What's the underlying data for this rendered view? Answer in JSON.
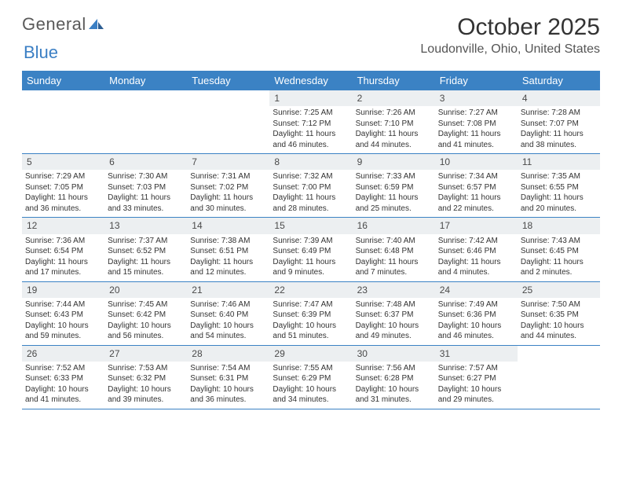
{
  "brand": {
    "part1": "General",
    "part2": "Blue"
  },
  "title": "October 2025",
  "location": "Loudonville, Ohio, United States",
  "colors": {
    "header_bg": "#3b82c4",
    "header_text": "#ffffff",
    "daynum_bg": "#eceff1",
    "border": "#3b82c4",
    "body_text": "#333333",
    "title_text": "#333333",
    "logo_gray": "#5a5a5a",
    "logo_blue": "#3b7fc4"
  },
  "day_names": [
    "Sunday",
    "Monday",
    "Tuesday",
    "Wednesday",
    "Thursday",
    "Friday",
    "Saturday"
  ],
  "weeks": [
    [
      {
        "day": "",
        "sunrise": "",
        "sunset": "",
        "daylight": ""
      },
      {
        "day": "",
        "sunrise": "",
        "sunset": "",
        "daylight": ""
      },
      {
        "day": "",
        "sunrise": "",
        "sunset": "",
        "daylight": ""
      },
      {
        "day": "1",
        "sunrise": "Sunrise: 7:25 AM",
        "sunset": "Sunset: 7:12 PM",
        "daylight": "Daylight: 11 hours and 46 minutes."
      },
      {
        "day": "2",
        "sunrise": "Sunrise: 7:26 AM",
        "sunset": "Sunset: 7:10 PM",
        "daylight": "Daylight: 11 hours and 44 minutes."
      },
      {
        "day": "3",
        "sunrise": "Sunrise: 7:27 AM",
        "sunset": "Sunset: 7:08 PM",
        "daylight": "Daylight: 11 hours and 41 minutes."
      },
      {
        "day": "4",
        "sunrise": "Sunrise: 7:28 AM",
        "sunset": "Sunset: 7:07 PM",
        "daylight": "Daylight: 11 hours and 38 minutes."
      }
    ],
    [
      {
        "day": "5",
        "sunrise": "Sunrise: 7:29 AM",
        "sunset": "Sunset: 7:05 PM",
        "daylight": "Daylight: 11 hours and 36 minutes."
      },
      {
        "day": "6",
        "sunrise": "Sunrise: 7:30 AM",
        "sunset": "Sunset: 7:03 PM",
        "daylight": "Daylight: 11 hours and 33 minutes."
      },
      {
        "day": "7",
        "sunrise": "Sunrise: 7:31 AM",
        "sunset": "Sunset: 7:02 PM",
        "daylight": "Daylight: 11 hours and 30 minutes."
      },
      {
        "day": "8",
        "sunrise": "Sunrise: 7:32 AM",
        "sunset": "Sunset: 7:00 PM",
        "daylight": "Daylight: 11 hours and 28 minutes."
      },
      {
        "day": "9",
        "sunrise": "Sunrise: 7:33 AM",
        "sunset": "Sunset: 6:59 PM",
        "daylight": "Daylight: 11 hours and 25 minutes."
      },
      {
        "day": "10",
        "sunrise": "Sunrise: 7:34 AM",
        "sunset": "Sunset: 6:57 PM",
        "daylight": "Daylight: 11 hours and 22 minutes."
      },
      {
        "day": "11",
        "sunrise": "Sunrise: 7:35 AM",
        "sunset": "Sunset: 6:55 PM",
        "daylight": "Daylight: 11 hours and 20 minutes."
      }
    ],
    [
      {
        "day": "12",
        "sunrise": "Sunrise: 7:36 AM",
        "sunset": "Sunset: 6:54 PM",
        "daylight": "Daylight: 11 hours and 17 minutes."
      },
      {
        "day": "13",
        "sunrise": "Sunrise: 7:37 AM",
        "sunset": "Sunset: 6:52 PM",
        "daylight": "Daylight: 11 hours and 15 minutes."
      },
      {
        "day": "14",
        "sunrise": "Sunrise: 7:38 AM",
        "sunset": "Sunset: 6:51 PM",
        "daylight": "Daylight: 11 hours and 12 minutes."
      },
      {
        "day": "15",
        "sunrise": "Sunrise: 7:39 AM",
        "sunset": "Sunset: 6:49 PM",
        "daylight": "Daylight: 11 hours and 9 minutes."
      },
      {
        "day": "16",
        "sunrise": "Sunrise: 7:40 AM",
        "sunset": "Sunset: 6:48 PM",
        "daylight": "Daylight: 11 hours and 7 minutes."
      },
      {
        "day": "17",
        "sunrise": "Sunrise: 7:42 AM",
        "sunset": "Sunset: 6:46 PM",
        "daylight": "Daylight: 11 hours and 4 minutes."
      },
      {
        "day": "18",
        "sunrise": "Sunrise: 7:43 AM",
        "sunset": "Sunset: 6:45 PM",
        "daylight": "Daylight: 11 hours and 2 minutes."
      }
    ],
    [
      {
        "day": "19",
        "sunrise": "Sunrise: 7:44 AM",
        "sunset": "Sunset: 6:43 PM",
        "daylight": "Daylight: 10 hours and 59 minutes."
      },
      {
        "day": "20",
        "sunrise": "Sunrise: 7:45 AM",
        "sunset": "Sunset: 6:42 PM",
        "daylight": "Daylight: 10 hours and 56 minutes."
      },
      {
        "day": "21",
        "sunrise": "Sunrise: 7:46 AM",
        "sunset": "Sunset: 6:40 PM",
        "daylight": "Daylight: 10 hours and 54 minutes."
      },
      {
        "day": "22",
        "sunrise": "Sunrise: 7:47 AM",
        "sunset": "Sunset: 6:39 PM",
        "daylight": "Daylight: 10 hours and 51 minutes."
      },
      {
        "day": "23",
        "sunrise": "Sunrise: 7:48 AM",
        "sunset": "Sunset: 6:37 PM",
        "daylight": "Daylight: 10 hours and 49 minutes."
      },
      {
        "day": "24",
        "sunrise": "Sunrise: 7:49 AM",
        "sunset": "Sunset: 6:36 PM",
        "daylight": "Daylight: 10 hours and 46 minutes."
      },
      {
        "day": "25",
        "sunrise": "Sunrise: 7:50 AM",
        "sunset": "Sunset: 6:35 PM",
        "daylight": "Daylight: 10 hours and 44 minutes."
      }
    ],
    [
      {
        "day": "26",
        "sunrise": "Sunrise: 7:52 AM",
        "sunset": "Sunset: 6:33 PM",
        "daylight": "Daylight: 10 hours and 41 minutes."
      },
      {
        "day": "27",
        "sunrise": "Sunrise: 7:53 AM",
        "sunset": "Sunset: 6:32 PM",
        "daylight": "Daylight: 10 hours and 39 minutes."
      },
      {
        "day": "28",
        "sunrise": "Sunrise: 7:54 AM",
        "sunset": "Sunset: 6:31 PM",
        "daylight": "Daylight: 10 hours and 36 minutes."
      },
      {
        "day": "29",
        "sunrise": "Sunrise: 7:55 AM",
        "sunset": "Sunset: 6:29 PM",
        "daylight": "Daylight: 10 hours and 34 minutes."
      },
      {
        "day": "30",
        "sunrise": "Sunrise: 7:56 AM",
        "sunset": "Sunset: 6:28 PM",
        "daylight": "Daylight: 10 hours and 31 minutes."
      },
      {
        "day": "31",
        "sunrise": "Sunrise: 7:57 AM",
        "sunset": "Sunset: 6:27 PM",
        "daylight": "Daylight: 10 hours and 29 minutes."
      },
      {
        "day": "",
        "sunrise": "",
        "sunset": "",
        "daylight": ""
      }
    ]
  ]
}
